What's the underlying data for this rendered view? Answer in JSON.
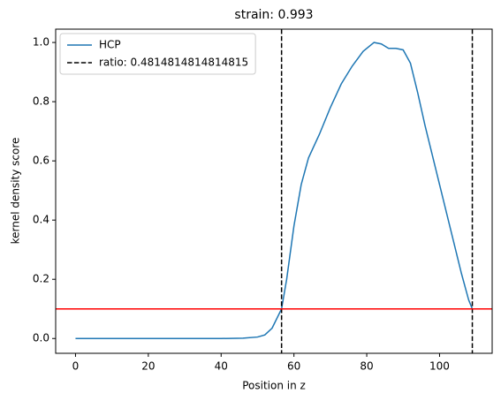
{
  "chart_data": {
    "type": "line",
    "title": "strain: 0.993",
    "x_label": "Position in z",
    "y_label": "kernel density score",
    "x": [
      0,
      10,
      20,
      30,
      40,
      46,
      50,
      52,
      54,
      56.6,
      58,
      60,
      62,
      64,
      67,
      70,
      73,
      76,
      79,
      82,
      84,
      86,
      88,
      90,
      92,
      94,
      96,
      98,
      100,
      102,
      104,
      106,
      108,
      109
    ],
    "series": [
      {
        "name": "HCP",
        "color": "#1f77b4",
        "values": [
          0,
          0,
          0,
          0,
          0,
          0.001,
          0.005,
          0.012,
          0.035,
          0.1,
          0.2,
          0.38,
          0.52,
          0.61,
          0.69,
          0.78,
          0.86,
          0.92,
          0.97,
          1.0,
          0.995,
          0.98,
          0.98,
          0.975,
          0.93,
          0.83,
          0.72,
          0.62,
          0.52,
          0.42,
          0.32,
          0.22,
          0.13,
          0.1
        ]
      }
    ],
    "vlines": {
      "name": "ratio: 0.4814814814814815",
      "color": "#000000",
      "values": [
        56.6,
        109
      ]
    },
    "hline": {
      "value": 0.1,
      "color": "#ff0000"
    },
    "xlim": [
      -5.45,
      114.45
    ],
    "ylim": [
      -0.05,
      1.045
    ],
    "xticks": [
      0,
      20,
      40,
      60,
      80,
      100
    ],
    "yticks": [
      {
        "value": 0,
        "label": "0.0"
      },
      {
        "value": 0.2,
        "label": "0.2"
      },
      {
        "value": 0.4,
        "label": "0.4"
      },
      {
        "value": 0.6,
        "label": "0.6"
      },
      {
        "value": 0.8,
        "label": "0.8"
      },
      {
        "value": 1.0,
        "label": "1.0"
      }
    ],
    "grid": false,
    "legend": "upper left"
  }
}
